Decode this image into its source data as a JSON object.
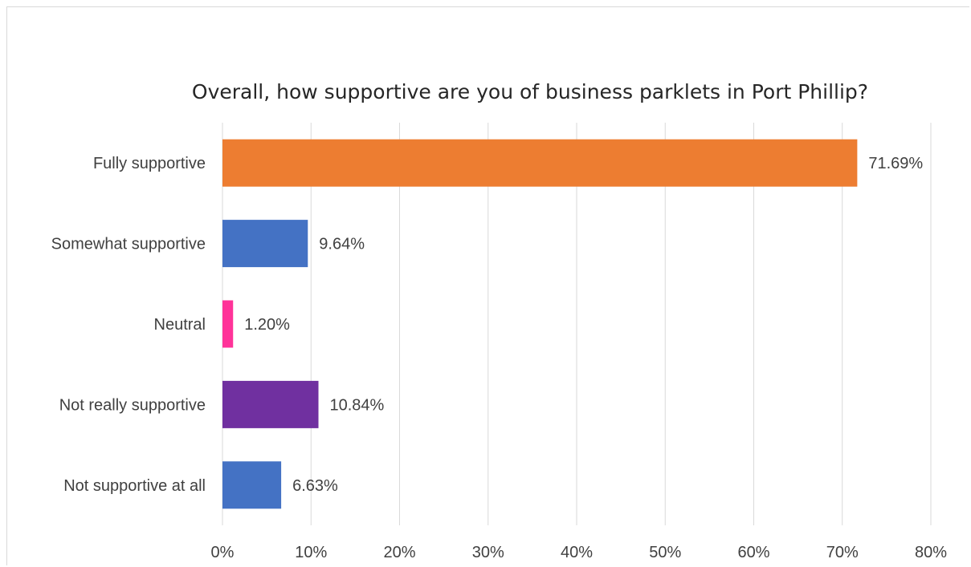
{
  "chart_data": {
    "type": "bar",
    "orientation": "horizontal",
    "title": "Overall, how supportive are you of business parklets in Port Phillip?",
    "xlabel": "",
    "ylabel": "",
    "categories": [
      "Fully supportive",
      "Somewhat supportive",
      "Neutral",
      "Not really supportive",
      "Not supportive at all"
    ],
    "values": [
      71.69,
      9.64,
      1.2,
      10.84,
      6.63
    ],
    "data_labels": [
      "71.69%",
      "9.64%",
      "1.20%",
      "10.84%",
      "6.63%"
    ],
    "colors": [
      "#ED7D31",
      "#4472C4",
      "#FF3399",
      "#7030A0",
      "#4472C4"
    ],
    "xlim": [
      0,
      80
    ],
    "xticks": [
      0,
      10,
      20,
      30,
      40,
      50,
      60,
      70,
      80
    ],
    "xtick_labels": [
      "0%",
      "10%",
      "20%",
      "30%",
      "40%",
      "50%",
      "60%",
      "70%",
      "80%"
    ],
    "grid": true,
    "legend": "none"
  }
}
